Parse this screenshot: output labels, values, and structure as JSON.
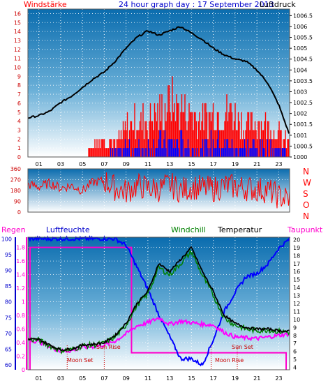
{
  "header": {
    "left_label": "Windstärke",
    "title": "24 hour graph day : 17 September 2013",
    "right_label": "Luftdruck"
  },
  "compass_letters": [
    "N",
    "W",
    "S",
    "O",
    "N"
  ],
  "bottom_legend": {
    "regen": "Regen",
    "luftfeuchte": "Luftfeuchte",
    "windchill": "Windchill",
    "temperatur": "Temperatur",
    "taupunkt": "Taupunkt"
  },
  "event_labels": {
    "sun_rise": "Sun Rise",
    "sun_set": "Sun Set",
    "moon_set": "Moon Set",
    "moon_rise": "Moon Rise"
  },
  "colors": {
    "wind": "#ff0000",
    "gust_bar": "#0000ff",
    "pressure": "#000000",
    "humidity": "#0000ff",
    "windchill": "#008000",
    "temperature": "#000000",
    "dewpoint": "#ff00ff",
    "rain": "#ff00cc",
    "event": "#cc0000",
    "bg_top": "#0a6cae",
    "bg_bottom": "#ffffff"
  },
  "chart_data": [
    {
      "type": "line",
      "name": "wind-pressure",
      "x_ticks": [
        "01",
        "03",
        "05",
        "07",
        "09",
        "11",
        "13",
        "15",
        "17",
        "19",
        "21",
        "23"
      ],
      "left_axis": {
        "ticks": [
          0,
          1,
          2,
          3,
          4,
          5,
          6,
          7,
          8,
          9,
          10,
          11,
          12,
          13,
          14,
          15,
          16
        ],
        "range": [
          0,
          16.5
        ]
      },
      "right_axis": {
        "ticks": [
          "1000",
          "1000.5",
          "1001",
          "1001.5",
          "1002",
          "1002.5",
          "1003",
          "1003.5",
          "1004",
          "1004.5",
          "1005",
          "1005.5",
          "1006",
          "1006.5"
        ],
        "range": [
          1000,
          1006.8
        ]
      },
      "x_hours": [
        0,
        1,
        2,
        3,
        4,
        5,
        6,
        7,
        8,
        9,
        10,
        11,
        12,
        13,
        14,
        15,
        16,
        17,
        18,
        19,
        20,
        21,
        22,
        23,
        24
      ],
      "pressure": [
        1001.8,
        1001.9,
        1002.1,
        1002.5,
        1002.8,
        1003.2,
        1003.6,
        1003.9,
        1004.4,
        1005.0,
        1005.5,
        1005.8,
        1005.6,
        1005.8,
        1006.0,
        1005.7,
        1005.4,
        1005.0,
        1004.7,
        1004.5,
        1004.4,
        1004.0,
        1003.4,
        1002.4,
        1001.0
      ],
      "wind_max": [
        0,
        0,
        0,
        0,
        0,
        0,
        2,
        3,
        2,
        5,
        6,
        6,
        7,
        9,
        8,
        7,
        6,
        7,
        8,
        7,
        5,
        6,
        5,
        4,
        2
      ],
      "gust_max": [
        0,
        0,
        0,
        0,
        0,
        0,
        0,
        0,
        1,
        2,
        2,
        2,
        3,
        3,
        3,
        2,
        2,
        3,
        3,
        2,
        2,
        2,
        2,
        2,
        1
      ]
    },
    {
      "type": "line",
      "name": "wind-direction",
      "left_axis": {
        "ticks": [
          0,
          90,
          180,
          270,
          360
        ],
        "range": [
          0,
          360
        ]
      },
      "x_hours": [
        0,
        1,
        2,
        3,
        4,
        5,
        6,
        7,
        8,
        9,
        10,
        11,
        12,
        13,
        14,
        15,
        16,
        17,
        18,
        19,
        20,
        21,
        22,
        23,
        24
      ],
      "direction": [
        230,
        210,
        240,
        200,
        220,
        180,
        250,
        260,
        200,
        170,
        220,
        200,
        190,
        230,
        180,
        210,
        200,
        190,
        220,
        210,
        200,
        190,
        180,
        130,
        110
      ]
    },
    {
      "type": "line",
      "name": "humidity-temperature",
      "x_ticks": [
        "01",
        "03",
        "05",
        "07",
        "09",
        "11",
        "13",
        "15",
        "17",
        "19",
        "21",
        "23"
      ],
      "left_humidity": {
        "ticks": [
          60,
          65,
          70,
          75,
          80,
          85,
          90,
          95,
          100
        ],
        "range": [
          58.5,
          100.5
        ]
      },
      "left_rain": {
        "ticks": [
          "0",
          "0.2",
          "0.4",
          "0.6",
          "0.8",
          "1",
          "1.2",
          "1.4",
          "1.6",
          "1.8"
        ],
        "range": [
          0,
          1.95
        ]
      },
      "right_temperature": {
        "ticks": [
          4,
          5,
          6,
          7,
          8,
          9,
          10,
          11,
          12,
          13,
          14,
          15,
          16,
          17,
          18,
          19,
          20
        ],
        "range": [
          3.7,
          20.3
        ]
      },
      "x_hours": [
        0,
        1,
        2,
        3,
        4,
        5,
        6,
        7,
        8,
        9,
        10,
        11,
        12,
        13,
        14,
        15,
        16,
        17,
        18,
        19,
        20,
        21,
        22,
        23,
        24
      ],
      "humidity": [
        100,
        100,
        100,
        100,
        100,
        100,
        100,
        100,
        100,
        98,
        91,
        84,
        76,
        69,
        62,
        62,
        60,
        68,
        77,
        83,
        88,
        89,
        92,
        97,
        100
      ],
      "temperature": [
        7.5,
        7.5,
        6.8,
        6.2,
        6.3,
        6.8,
        6.9,
        7.1,
        8.0,
        9.5,
        12.0,
        13.5,
        17.0,
        16.0,
        17.5,
        19.0,
        16.0,
        13.5,
        10.5,
        9.5,
        9.0,
        8.8,
        8.8,
        8.6,
        8.5
      ],
      "windchill": [
        7.5,
        7.4,
        6.7,
        6.1,
        6.2,
        6.7,
        6.8,
        7.0,
        7.8,
        9.3,
        11.8,
        13.2,
        16.5,
        15.6,
        17.0,
        18.5,
        15.5,
        13.0,
        10.2,
        9.3,
        8.8,
        8.6,
        8.7,
        8.5,
        8.4
      ],
      "dewpoint": [
        7.5,
        7.2,
        6.6,
        6.0,
        6.1,
        6.5,
        6.6,
        6.8,
        7.3,
        8.2,
        9.2,
        9.6,
        10.2,
        9.4,
        9.8,
        9.6,
        9.4,
        9.3,
        8.4,
        7.8,
        7.7,
        7.6,
        7.8,
        8.0,
        8.2
      ],
      "rain": [
        1.8,
        1.8,
        1.8,
        1.8,
        1.8,
        1.8,
        1.8,
        1.8,
        1.8,
        1.8,
        0.25,
        0.25,
        0.25,
        0.25,
        0.25,
        0.25,
        0.25,
        0.25,
        0.25,
        0.25,
        0.25,
        0.25,
        0.25,
        0.25,
        0.25
      ]
    }
  ]
}
